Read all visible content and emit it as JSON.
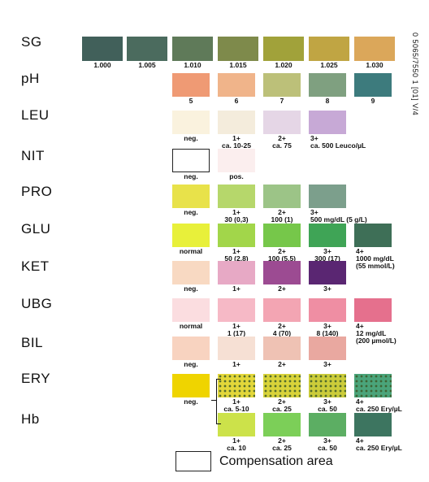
{
  "lot_code": "0 5065/7550 1 [01] V/4",
  "compensation_label": "Compensation area",
  "rows": [
    {
      "param": "SG",
      "top": 0,
      "swatches": [
        {
          "color": "#41605a",
          "label": "1.000"
        },
        {
          "color": "#4b6b5e",
          "label": "1.005"
        },
        {
          "color": "#5f7a59",
          "label": "1.010"
        },
        {
          "color": "#7e8a4b",
          "label": "1.015"
        },
        {
          "color": "#a1a23a",
          "label": "1.020"
        },
        {
          "color": "#c0a543",
          "label": "1.025"
        },
        {
          "color": "#dba75a",
          "label": "1.030"
        }
      ]
    },
    {
      "param": "pH",
      "swatches": [
        {
          "color": "#ef9a74",
          "label": "5"
        },
        {
          "color": "#f0b48a",
          "label": "6"
        },
        {
          "color": "#bcc079",
          "label": "7"
        },
        {
          "color": "#7fa080",
          "label": "8"
        },
        {
          "color": "#3d7b7d",
          "label": "9"
        }
      ]
    },
    {
      "param": "LEU",
      "swatches": [
        {
          "color": "#faf2de",
          "label": "neg."
        },
        {
          "color": "#f4ecdc",
          "label": "1+\nca. 10-25"
        },
        {
          "color": "#e5d6e6",
          "label": "2+\nca. 75"
        },
        {
          "color": "#c7a9d6",
          "label": "3+\nca. 500 Leuco/µL"
        }
      ]
    },
    {
      "param": "NIT",
      "swatches": [
        {
          "color": "#ffffff",
          "label": "neg.",
          "outlined": true
        },
        {
          "color": "#fbeeee",
          "label": "pos."
        }
      ]
    },
    {
      "param": "PRO",
      "swatches": [
        {
          "color": "#e8e24a",
          "label": "neg."
        },
        {
          "color": "#b6d76b",
          "label": "1+\n30 (0,3)"
        },
        {
          "color": "#9cc487",
          "label": "2+\n100 (1)"
        },
        {
          "color": "#7c9f8c",
          "label": "3+\n500 mg/dL (5 g/L)"
        }
      ]
    },
    {
      "param": "GLU",
      "swatches": [
        {
          "color": "#e8f03a",
          "label": "normal"
        },
        {
          "color": "#a2d64a",
          "label": "1+\n50 (2,8)"
        },
        {
          "color": "#76c74a",
          "label": "2+\n100 (5,5)"
        },
        {
          "color": "#3fa456",
          "label": "3+\n300 (17)"
        },
        {
          "color": "#3e6f57",
          "label": "4+\n1000 mg/dL\n(55 mmol/L)"
        }
      ]
    },
    {
      "param": "KET",
      "swatches": [
        {
          "color": "#f8d9c2",
          "label": "neg."
        },
        {
          "color": "#e7a9c5",
          "label": "1+"
        },
        {
          "color": "#9c4b92",
          "label": "2+"
        },
        {
          "color": "#5a2672",
          "label": "3+"
        }
      ]
    },
    {
      "param": "UBG",
      "swatches": [
        {
          "color": "#fbdde0",
          "label": "normal"
        },
        {
          "color": "#f6b9c6",
          "label": "1+\n1 (17)"
        },
        {
          "color": "#f3a5b3",
          "label": "2+\n4 (70)"
        },
        {
          "color": "#ef8ea3",
          "label": "3+\n8 (140)"
        },
        {
          "color": "#e5708d",
          "label": "4+\n12 mg/dL\n(200 µmol/L)"
        }
      ]
    },
    {
      "param": "BIL",
      "swatches": [
        {
          "color": "#f8d3c0",
          "label": "neg."
        },
        {
          "color": "#f6e0d4",
          "label": "1+"
        },
        {
          "color": "#efc2b4",
          "label": "2+"
        },
        {
          "color": "#e9a8a0",
          "label": "3+"
        }
      ]
    },
    {
      "param": "ERY",
      "swatches": [
        {
          "color": "#efd400",
          "label": "neg."
        },
        {
          "color": "#e2d73a",
          "label": "1+\nca. 5-10",
          "dotted": true
        },
        {
          "color": "#d8d33a",
          "label": "2+\nca. 25",
          "dotted": true
        },
        {
          "color": "#cbcc3a",
          "label": "3+\nca. 50",
          "dotted": true
        },
        {
          "color": "#4aa47a",
          "label": "4+\nca. 250 Ery/µL",
          "dotted": true
        }
      ]
    },
    {
      "param": "Hb",
      "swatches": [
        {
          "color": "#cce24a",
          "label": "1+\nca. 10"
        },
        {
          "color": "#7ccf58",
          "label": "2+\nca. 25"
        },
        {
          "color": "#5cae63",
          "label": "3+\nca. 50"
        },
        {
          "color": "#3d7560",
          "label": "4+\nca. 250 Ery/µL"
        }
      ]
    }
  ]
}
